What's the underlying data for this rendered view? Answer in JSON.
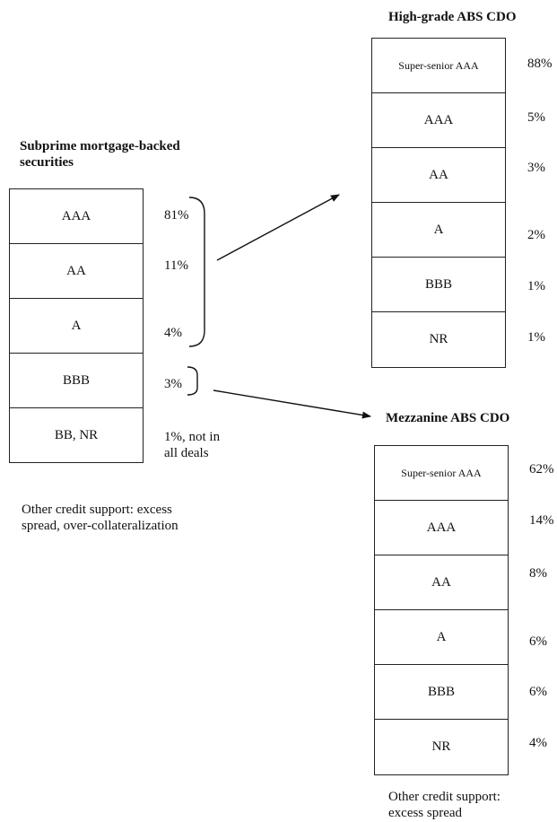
{
  "subprime": {
    "title_line1": "Subprime mortgage-backed",
    "title_line2": "securities",
    "tranches": [
      {
        "label": "AAA",
        "pct": "81%"
      },
      {
        "label": "AA",
        "pct": "11%"
      },
      {
        "label": "A",
        "pct": "4%"
      },
      {
        "label": "BBB",
        "pct": "3%"
      },
      {
        "label": "BB, NR",
        "pct_line1": "1%, not in",
        "pct_line2": "all deals"
      }
    ],
    "note_line1": "Other credit support: excess",
    "note_line2": "spread, over-collateralization"
  },
  "high_grade": {
    "title": "High-grade ABS CDO",
    "tranches": [
      {
        "label": "Super-senior AAA",
        "pct": "88%"
      },
      {
        "label": "AAA",
        "pct": "5%"
      },
      {
        "label": "AA",
        "pct": "3%"
      },
      {
        "label": "A",
        "pct": "2%"
      },
      {
        "label": "BBB",
        "pct": "1%"
      },
      {
        "label": "NR",
        "pct": "1%"
      }
    ]
  },
  "mezzanine": {
    "title": "Mezzanine ABS CDO",
    "tranches": [
      {
        "label": "Super-senior AAA",
        "pct": "62%"
      },
      {
        "label": "AAA",
        "pct": "14%"
      },
      {
        "label": "AA",
        "pct": "8%"
      },
      {
        "label": "A",
        "pct": "6%"
      },
      {
        "label": "BBB",
        "pct": "6%"
      },
      {
        "label": "NR",
        "pct": "4%"
      }
    ],
    "note_line1": "Other credit support:",
    "note_line2": "excess spread"
  }
}
